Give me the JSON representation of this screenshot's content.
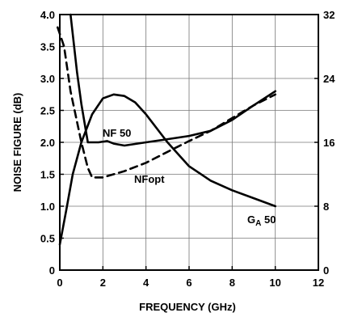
{
  "chart_data": {
    "type": "line",
    "title": "",
    "xlabel": "FREQUENCY (GHz)",
    "ylabel": "NOISE FIGURE (dB)",
    "y2label": "",
    "xlim": [
      0,
      12
    ],
    "ylim": [
      0,
      4.0
    ],
    "y2lim": [
      0,
      32
    ],
    "grid": true,
    "x_ticks": [
      "0",
      "2",
      "4",
      "6",
      "8",
      "10",
      "12"
    ],
    "y_ticks": [
      "0",
      "0.5",
      "1.0",
      "1.5",
      "2.0",
      "2.5",
      "3.0",
      "3.5",
      "4.0"
    ],
    "y2_ticks": [
      "0",
      "8",
      "16",
      "24",
      "32"
    ],
    "series": [
      {
        "name": "NF 50",
        "label_text": "NF 50",
        "axis": "left",
        "style": "solid",
        "x": [
          0.5,
          0.8,
          1.0,
          1.3,
          1.8,
          2.2,
          2.5,
          3.0,
          4.0,
          5.0,
          6.0,
          7.0,
          8.0,
          9.0,
          10.0
        ],
        "y": [
          4.0,
          3.1,
          2.6,
          2.0,
          2.0,
          2.02,
          1.98,
          1.95,
          2.0,
          2.05,
          2.1,
          2.18,
          2.35,
          2.58,
          2.8
        ]
      },
      {
        "name": "NFopt",
        "label_text": "NFopt",
        "axis": "left",
        "style": "dashed",
        "x": [
          -0.1,
          0.2,
          0.5,
          1.0,
          1.3,
          1.5,
          2.0,
          3.0,
          4.0,
          5.0,
          6.0,
          7.0,
          8.0,
          9.0,
          10.0
        ],
        "y": [
          3.8,
          3.5,
          2.8,
          2.0,
          1.6,
          1.45,
          1.45,
          1.55,
          1.68,
          1.85,
          2.02,
          2.18,
          2.38,
          2.58,
          2.75
        ]
      },
      {
        "name": "GA 50",
        "label_main": "G",
        "label_sub": "A",
        "label_rest": " 50",
        "axis": "right",
        "style": "solid",
        "x": [
          0.0,
          0.3,
          0.6,
          1.0,
          1.5,
          2.0,
          2.5,
          3.0,
          3.5,
          4.0,
          5.0,
          6.0,
          7.0,
          8.0,
          9.0,
          10.0
        ],
        "y": [
          3.2,
          7.5,
          12.0,
          16.0,
          19.5,
          21.5,
          22.0,
          21.8,
          21.0,
          19.5,
          16.0,
          13.0,
          11.2,
          10.0,
          9.0,
          8.0
        ]
      }
    ]
  }
}
